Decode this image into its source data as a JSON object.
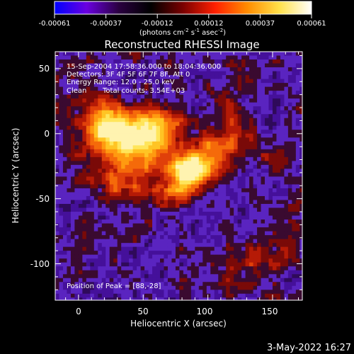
{
  "colorbar": {
    "tick_labels": [
      "-0.00061",
      "-0.00037",
      "-0.00012",
      "0.00012",
      "0.00037",
      "0.00061"
    ],
    "unit_main": "(photons cm",
    "unit_exp1": "-2",
    "unit_mid1": " s",
    "unit_exp2": "-1",
    "unit_mid2": " asec",
    "unit_exp3": "-2",
    "unit_end": ")",
    "colors": [
      "#0000ff",
      "#6a00e0",
      "#2a0040",
      "#000000",
      "#7a0000",
      "#ff2000",
      "#ff8c00",
      "#ffe14a",
      "#ffffff"
    ]
  },
  "plot": {
    "title": "Reconstructed RHESSI Image",
    "xlabel": "Heliocentric X (arcsec)",
    "ylabel": "Heliocentric Y (arcsec)",
    "xticks": [
      0,
      50,
      100,
      150
    ],
    "yticks": [
      50,
      0,
      -50,
      -100
    ],
    "xlim": [
      -18,
      173
    ],
    "ylim": [
      -128,
      63
    ]
  },
  "info": {
    "line1": "15-Sep-2004 17:58:36.000 to 18:04:36.000",
    "line2": "Detectors: 3F 4F 5F 6F 7F 8F, Att 0",
    "line3": "Energy Range: 12.0 - 25.0 keV",
    "line4_left": "Clean",
    "line4_right": "Total counts: 3.54E+03",
    "peak": "Position of Peak = [88,-28]"
  },
  "stamp": "3-May-2022 16:27",
  "image": {
    "peak": [
      88,
      -28
    ],
    "palette": [
      "#1a0630",
      "#2f0a5a",
      "#45109a",
      "#5a24c0",
      "#3a0a30",
      "#7a0a08",
      "#b51a06",
      "#e0400a",
      "#f56a0a",
      "#ff9a10",
      "#ffc424",
      "#ffe55a",
      "#fff3b0"
    ]
  }
}
